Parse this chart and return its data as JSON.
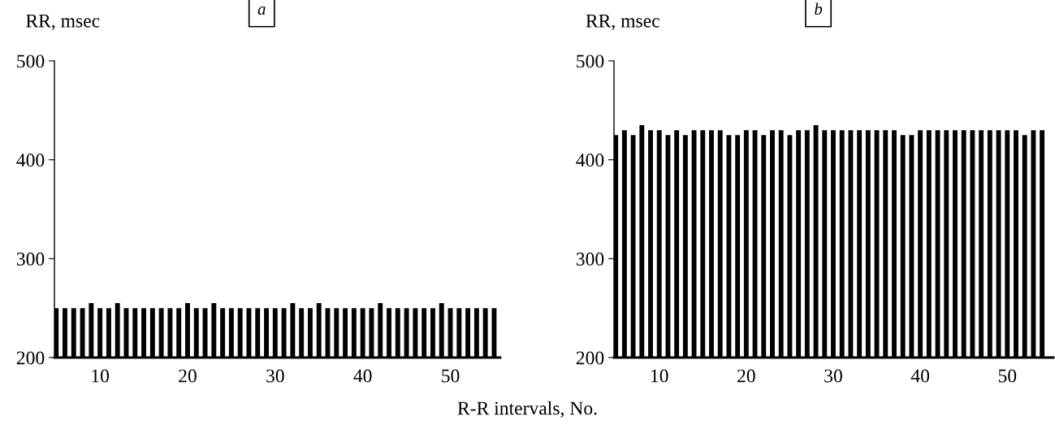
{
  "chart_data": [
    {
      "type": "bar",
      "title": "a",
      "xlabel": "R-R intervals, No.",
      "ylabel": "RR, msec",
      "color": "#000000",
      "x": [
        5,
        6,
        7,
        8,
        9,
        10,
        11,
        12,
        13,
        14,
        15,
        16,
        17,
        18,
        19,
        20,
        21,
        22,
        23,
        24,
        25,
        26,
        27,
        28,
        29,
        30,
        31,
        32,
        33,
        34,
        35,
        36,
        37,
        38,
        39,
        40,
        41,
        42,
        43,
        44,
        45,
        46,
        47,
        48,
        49,
        50,
        51,
        52,
        53,
        54,
        55
      ],
      "values": [
        250,
        250,
        250,
        250,
        255,
        250,
        250,
        255,
        250,
        250,
        250,
        250,
        250,
        250,
        250,
        255,
        250,
        250,
        255,
        250,
        250,
        250,
        250,
        250,
        250,
        250,
        250,
        255,
        250,
        250,
        255,
        250,
        250,
        250,
        250,
        250,
        250,
        255,
        250,
        250,
        250,
        250,
        250,
        250,
        255,
        250,
        250,
        250,
        250,
        250,
        250
      ],
      "xlim": [
        4.8,
        55.7
      ],
      "ylim": [
        200,
        500
      ],
      "xticks": [
        10,
        20,
        30,
        40,
        50
      ],
      "yticks": [
        200,
        300,
        400,
        500
      ],
      "grid": false
    },
    {
      "type": "bar",
      "title": "b",
      "ylabel": "RR, msec",
      "color": "#000000",
      "x": [
        5,
        6,
        7,
        8,
        9,
        10,
        11,
        12,
        13,
        14,
        15,
        16,
        17,
        18,
        19,
        20,
        21,
        22,
        23,
        24,
        25,
        26,
        27,
        28,
        29,
        30,
        31,
        32,
        33,
        34,
        35,
        36,
        37,
        38,
        39,
        40,
        41,
        42,
        43,
        44,
        45,
        46,
        47,
        48,
        49,
        50,
        51,
        52,
        53,
        54
      ],
      "values": [
        425,
        430,
        425,
        435,
        430,
        430,
        425,
        430,
        425,
        430,
        430,
        430,
        430,
        425,
        425,
        430,
        430,
        425,
        430,
        430,
        425,
        430,
        430,
        435,
        430,
        430,
        430,
        430,
        430,
        430,
        430,
        430,
        430,
        425,
        425,
        430,
        430,
        430,
        430,
        430,
        430,
        430,
        430,
        430,
        430,
        430,
        430,
        425,
        430,
        430
      ],
      "xlim": [
        4.8,
        55.3
      ],
      "ylim": [
        200,
        500
      ],
      "xticks": [
        10,
        20,
        30,
        40,
        50
      ],
      "yticks": [
        200,
        300,
        400,
        500
      ],
      "grid": false
    }
  ]
}
